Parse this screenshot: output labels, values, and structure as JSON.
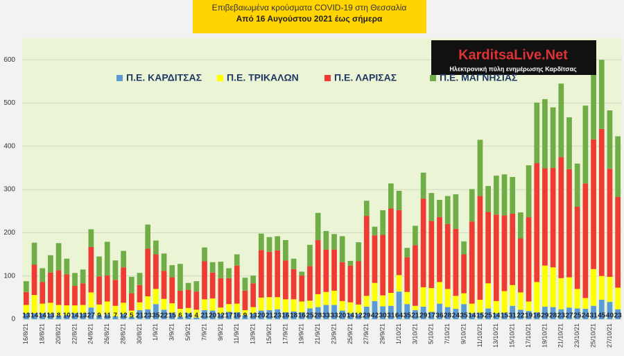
{
  "chart_data": {
    "type": "stacked-bar",
    "title": "Επιβεβαιωμένα κρούσματα COVID-19 στη Θεσσαλία",
    "subtitle": "Από 16 Αυγούστου 2021 έως σήμερα",
    "categories": [
      "16/8/21",
      null,
      "18/8/21",
      null,
      "20/8/21",
      null,
      "22/8/21",
      null,
      "24/8/21",
      null,
      "26/8/21",
      null,
      "28/8/21",
      null,
      "30/8/21",
      null,
      "1/9/21",
      null,
      "3/9/21",
      null,
      "5/9/21",
      null,
      "7/9/21",
      null,
      "9/9/21",
      null,
      "11/9/21",
      null,
      "13/9/21",
      null,
      "15/9/21",
      null,
      "17/9/21",
      null,
      "19/9/21",
      null,
      "21/9/21",
      null,
      "23/9/21",
      null,
      "25/9/21",
      null,
      "27/9/21",
      null,
      "29/9/21",
      null,
      "1/10/21",
      null,
      "3/10/21",
      null,
      "5/10/21",
      null,
      "7/10/21",
      null,
      "9/10/21",
      null,
      "11/10/21",
      null,
      "13/10/21",
      null,
      "15/10/21",
      null,
      "17/10/21",
      null,
      "19/10/21",
      null,
      "21/10/21",
      null,
      "23/10/21",
      null,
      "25/10/21",
      null,
      "27/10/21",
      null
    ],
    "series": [
      {
        "name": "Π.Ε. ΚΑΡΔΙΤΣΑΣ",
        "color": "#5b9bd5",
        "values": [
          13,
          14,
          14,
          13,
          8,
          10,
          14,
          13,
          27,
          9,
          11,
          7,
          12,
          5,
          21,
          23,
          35,
          22,
          15,
          6,
          14,
          4,
          21,
          20,
          12,
          17,
          16,
          9,
          13,
          20,
          21,
          23,
          16,
          18,
          16,
          25,
          28,
          33,
          33,
          20,
          14,
          12,
          29,
          42,
          30,
          31,
          64,
          35,
          21,
          29,
          17,
          36,
          28,
          24,
          35,
          14,
          15,
          25,
          14,
          15,
          31,
          22,
          19,
          16,
          29,
          28,
          23,
          27,
          25,
          24,
          31,
          45,
          40,
          23
        ]
      },
      {
        "name": "Π.Ε. ΤΡΙΚΑΛΩΝ",
        "color": "#ffff00",
        "values": [
          20,
          42,
          22,
          25,
          25,
          22,
          18,
          20,
          35,
          25,
          30,
          24,
          26,
          15,
          18,
          30,
          35,
          25,
          22,
          18,
          12,
          18,
          25,
          28,
          15,
          18,
          20,
          12,
          15,
          30,
          30,
          28,
          30,
          28,
          25,
          18,
          30,
          30,
          33,
          22,
          25,
          22,
          25,
          42,
          25,
          30,
          38,
          28,
          10,
          45,
          55,
          50,
          42,
          30,
          25,
          22,
          30,
          58,
          28,
          50,
          48,
          40,
          22,
          70,
          95,
          92,
          72,
          70,
          45,
          25,
          85,
          55,
          58,
          50
        ]
      },
      {
        "name": "Π.Ε. ΛΑΡΙΣΑΣ",
        "color": "#ee3b33",
        "values": [
          30,
          70,
          50,
          70,
          80,
          72,
          45,
          50,
          105,
          65,
          60,
          60,
          82,
          40,
          40,
          110,
          80,
          65,
          60,
          42,
          42,
          42,
          88,
          60,
          68,
          60,
          88,
          45,
          55,
          110,
          105,
          108,
          90,
          70,
          60,
          80,
          125,
          98,
          95,
          90,
          85,
          100,
          185,
          110,
          140,
          195,
          150,
          80,
          140,
          205,
          155,
          150,
          150,
          155,
          90,
          190,
          240,
          165,
          200,
          175,
          165,
          125,
          195,
          275,
          225,
          230,
          280,
          250,
          190,
          265,
          300,
          340,
          250,
          210
        ]
      },
      {
        "name": "Π.Ε. ΜΑΓΝΗΣΙΑΣ",
        "color": "#70ad47",
        "values": [
          25,
          51,
          32,
          40,
          63,
          36,
          30,
          32,
          41,
          46,
          78,
          45,
          38,
          38,
          28,
          56,
          32,
          40,
          28,
          62,
          16,
          24,
          32,
          24,
          38,
          23,
          26,
          30,
          18,
          38,
          34,
          33,
          47,
          24,
          9,
          49,
          63,
          43,
          36,
          60,
          11,
          44,
          35,
          20,
          57,
          58,
          45,
          22,
          45,
          60,
          65,
          40,
          65,
          80,
          30,
          75,
          130,
          60,
          90,
          95,
          85,
          60,
          120,
          140,
          160,
          140,
          170,
          120,
          100,
          180,
          200,
          160,
          135,
          140
        ]
      }
    ],
    "ylim": [
      0,
      650
    ],
    "yticks": [
      0,
      100,
      200,
      300,
      400,
      500,
      600
    ],
    "grid": true,
    "legend": "top"
  },
  "logo": {
    "name": "KarditsaLive.Net",
    "tagline": "Ηλεκτρονική πύλη ενημέρωσης Καρδίτσας"
  }
}
